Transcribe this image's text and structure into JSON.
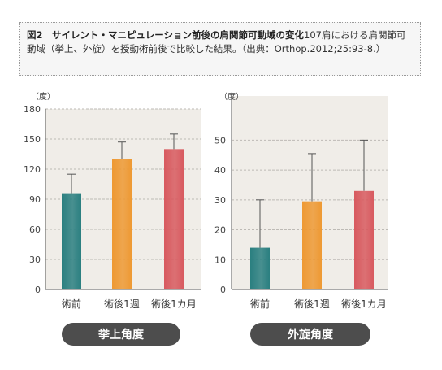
{
  "caption": {
    "title": "図2　サイレント・マニピュレーション前後の肩関節可動域の変化",
    "text": "107肩における肩関節可動域（挙上、外旋）を授動術前後で比較した結果。（出典：Orthop.2012;25:93-8.）"
  },
  "chart_data": [
    {
      "type": "bar",
      "title": "挙上角度",
      "ylabel": "（度）",
      "categories": [
        "術前",
        "術後1週",
        "術後1カ月"
      ],
      "values": [
        96,
        130,
        140
      ],
      "error_upper": [
        115,
        147,
        155
      ],
      "ylim": [
        0,
        180
      ],
      "yticks": [
        0,
        30,
        60,
        90,
        120,
        150,
        180
      ],
      "grid": true,
      "colors": [
        "#2a7f80",
        "#ee9933",
        "#d85a5f"
      ]
    },
    {
      "type": "bar",
      "title": "外旋角度",
      "ylabel": "（度）",
      "categories": [
        "術前",
        "術後1週",
        "術後1カ月"
      ],
      "values": [
        14,
        29.5,
        33
      ],
      "error_upper": [
        30,
        45.5,
        50
      ],
      "ylim": [
        0,
        55
      ],
      "yticks": [
        0,
        10,
        20,
        30,
        40,
        50
      ],
      "grid": true,
      "colors": [
        "#2a7f80",
        "#ee9933",
        "#d85a5f"
      ]
    }
  ]
}
